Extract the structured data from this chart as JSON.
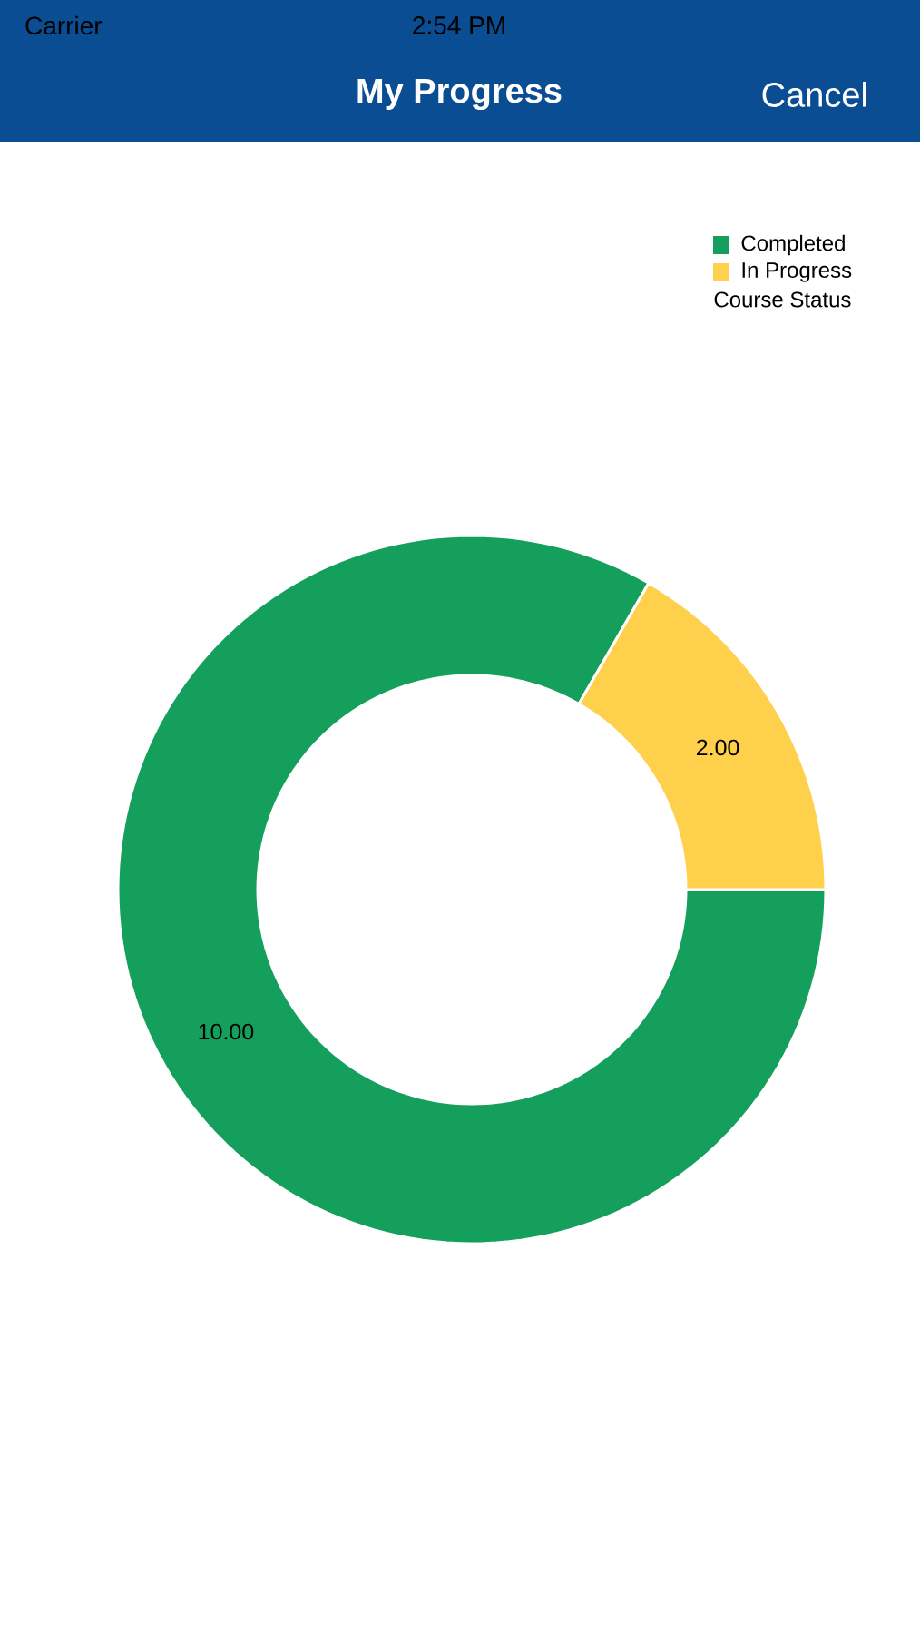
{
  "chart_data": {
    "type": "donut",
    "title": "My Progress",
    "categories": [
      "Completed",
      "In Progress"
    ],
    "values": [
      10,
      2
    ],
    "colors": [
      "#159f5c",
      "#fed04b"
    ],
    "value_labels": [
      "10.00",
      "2.00"
    ],
    "legend": "top right",
    "legend_title": "Course Status",
    "annotations": [
      "Carrier",
      "2:54 PM",
      "Cancel"
    ]
  }
}
